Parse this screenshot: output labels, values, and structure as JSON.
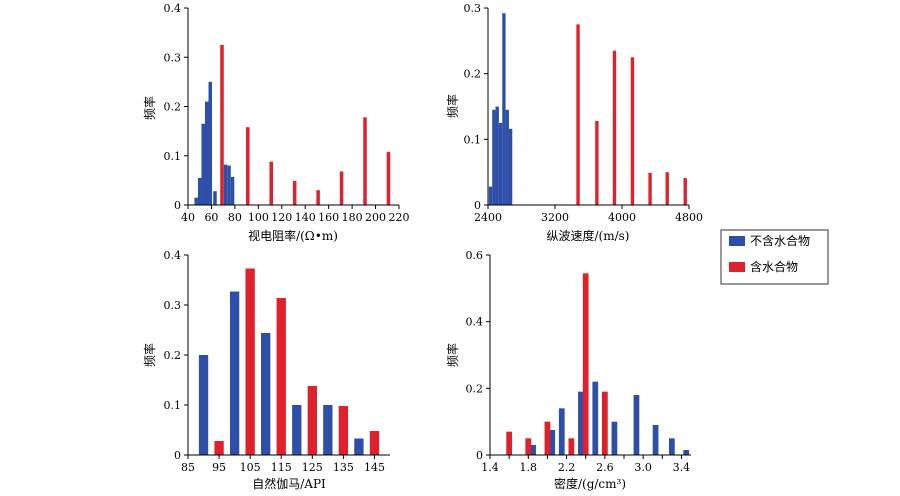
{
  "legend": [
    {
      "name": "不含水合物",
      "color": "#2d4fa8"
    },
    {
      "name": "含水合物",
      "color": "#e0202a"
    }
  ],
  "chart_data": [
    {
      "type": "bar",
      "xlabel": "视电阻率/(Ω•m)",
      "ylabel": "频率",
      "xlim": [
        40,
        220
      ],
      "ylim": [
        0,
        0.4
      ],
      "xticks": [
        40,
        60,
        80,
        100,
        120,
        140,
        160,
        180,
        200,
        220
      ],
      "yticks": [
        0,
        0.1,
        0.2,
        0.3,
        0.4
      ],
      "bar_width": 3,
      "series": [
        {
          "name": "不含水合物",
          "points": [
            [
              47,
              0.015
            ],
            [
              50,
              0.055
            ],
            [
              53,
              0.165
            ],
            [
              56,
              0.21
            ],
            [
              59,
              0.25
            ],
            [
              63,
              0.028
            ],
            [
              72,
              0.082
            ],
            [
              75,
              0.08
            ],
            [
              78,
              0.057
            ]
          ]
        },
        {
          "name": "含水合物",
          "points": [
            [
              69,
              0.325
            ],
            [
              91,
              0.158
            ],
            [
              111,
              0.088
            ],
            [
              131,
              0.049
            ],
            [
              151,
              0.03
            ],
            [
              171,
              0.068
            ],
            [
              191,
              0.178
            ],
            [
              211,
              0.108
            ]
          ]
        }
      ]
    },
    {
      "type": "bar",
      "xlabel": "纵波速度/(m/s)",
      "ylabel": "频率",
      "xlim": [
        2400,
        4800
      ],
      "ylim": [
        0,
        0.3
      ],
      "xticks": [
        2400,
        3200,
        4000,
        4800
      ],
      "yticks": [
        0,
        0.1,
        0.2,
        0.3
      ],
      "bar_width": 40,
      "series": [
        {
          "name": "不含水合物",
          "points": [
            [
              2430,
              0.028
            ],
            [
              2470,
              0.145
            ],
            [
              2510,
              0.15
            ],
            [
              2550,
              0.125
            ],
            [
              2590,
              0.292
            ],
            [
              2630,
              0.145
            ],
            [
              2670,
              0.116
            ]
          ]
        },
        {
          "name": "含水合物",
          "points": [
            [
              3475,
              0.275
            ],
            [
              3700,
              0.128
            ],
            [
              3910,
              0.235
            ],
            [
              4125,
              0.225
            ],
            [
              4335,
              0.049
            ],
            [
              4540,
              0.05
            ],
            [
              4755,
              0.041
            ]
          ]
        }
      ]
    },
    {
      "type": "bar",
      "xlabel": "自然伽马/API",
      "ylabel": "频率",
      "xlim": [
        85,
        150
      ],
      "ylim": [
        0,
        0.4
      ],
      "xticks": [
        85,
        95,
        105,
        115,
        125,
        135,
        145
      ],
      "yticks": [
        0,
        0.1,
        0.2,
        0.3,
        0.4
      ],
      "bar_width": 3,
      "series": [
        {
          "name": "不含水合物",
          "points": [
            [
              90,
              0.2
            ],
            [
              100,
              0.327
            ],
            [
              110,
              0.244
            ],
            [
              120,
              0.1
            ],
            [
              130,
              0.1
            ],
            [
              140,
              0.033
            ]
          ]
        },
        {
          "name": "含水合物",
          "points": [
            [
              95,
              0.028
            ],
            [
              105,
              0.373
            ],
            [
              115,
              0.314
            ],
            [
              125,
              0.138
            ],
            [
              135,
              0.098
            ],
            [
              145,
              0.048
            ]
          ]
        }
      ]
    },
    {
      "type": "bar",
      "xlabel": "密度/(g/cm³)",
      "ylabel": "频率",
      "xlim": [
        1.4,
        3.5
      ],
      "ylim": [
        0,
        0.6
      ],
      "xticks": [
        1.4,
        1.6,
        1.8,
        2.0,
        2.2,
        2.4,
        2.6,
        2.8,
        3.0,
        3.2,
        3.4
      ],
      "xtick_labels": [
        "1.4",
        "",
        "1.8",
        "",
        "2.2",
        "",
        "2.6",
        "",
        "3.0",
        "",
        "3.4"
      ],
      "yticks": [
        0,
        0.2,
        0.4,
        0.6
      ],
      "bar_width": 0.06,
      "series": [
        {
          "name": "不含水合物",
          "points": [
            [
              1.85,
              0.03
            ],
            [
              2.05,
              0.075
            ],
            [
              2.15,
              0.14
            ],
            [
              2.35,
              0.19
            ],
            [
              2.5,
              0.22
            ],
            [
              2.7,
              0.1
            ],
            [
              2.93,
              0.18
            ],
            [
              3.13,
              0.09
            ],
            [
              3.3,
              0.05
            ],
            [
              3.45,
              0.015
            ]
          ]
        },
        {
          "name": "含水合物",
          "points": [
            [
              1.6,
              0.07
            ],
            [
              1.8,
              0.05
            ],
            [
              2.0,
              0.1
            ],
            [
              2.25,
              0.05
            ],
            [
              2.4,
              0.545
            ],
            [
              2.6,
              0.19
            ]
          ]
        }
      ]
    }
  ]
}
